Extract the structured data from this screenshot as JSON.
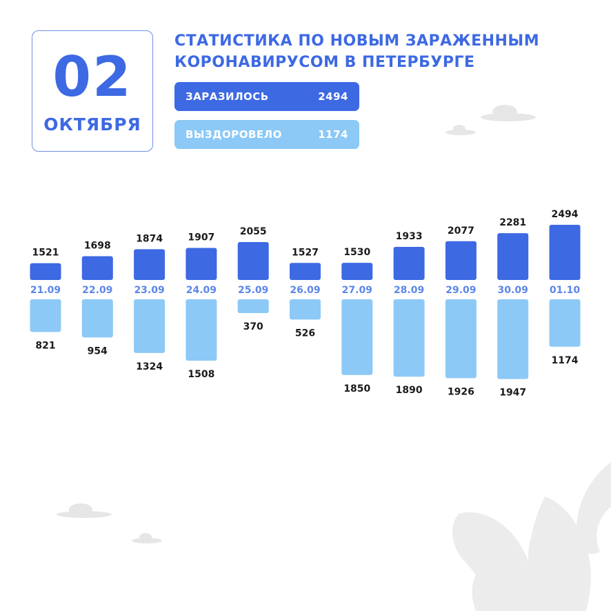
{
  "header": {
    "day": "02",
    "month": "ОКТЯБРЯ",
    "title_line1": "СТАТИСТИКА ПО НОВЫМ ЗАРАЖЕННЫМ",
    "title_line2": "КОРОНАВИРУСОМ В ПЕТЕРБУРГЕ"
  },
  "stats": {
    "infected_label": "ЗАРАЗИЛОСЬ",
    "infected_value": "2494",
    "recovered_label": "ВЫЗДОРОВЕЛО",
    "recovered_value": "1174"
  },
  "colors": {
    "infected": "#3d69e3",
    "recovered": "#8cc9f6",
    "date_label": "#5b86ea",
    "value_label": "#1a1a1a"
  },
  "chart_data": {
    "type": "bar",
    "categories": [
      "21.09",
      "22.09",
      "23.09",
      "24.09",
      "25.09",
      "26.09",
      "27.09",
      "28.09",
      "29.09",
      "30.09",
      "01.10"
    ],
    "series": [
      {
        "key": "infected",
        "values": [
          1521,
          1698,
          1874,
          1907,
          2055,
          1527,
          1530,
          1933,
          2077,
          2281,
          2494
        ]
      },
      {
        "key": "recovered",
        "values": [
          821,
          954,
          1324,
          1508,
          370,
          526,
          1850,
          1890,
          1926,
          1947,
          1174
        ]
      }
    ]
  }
}
